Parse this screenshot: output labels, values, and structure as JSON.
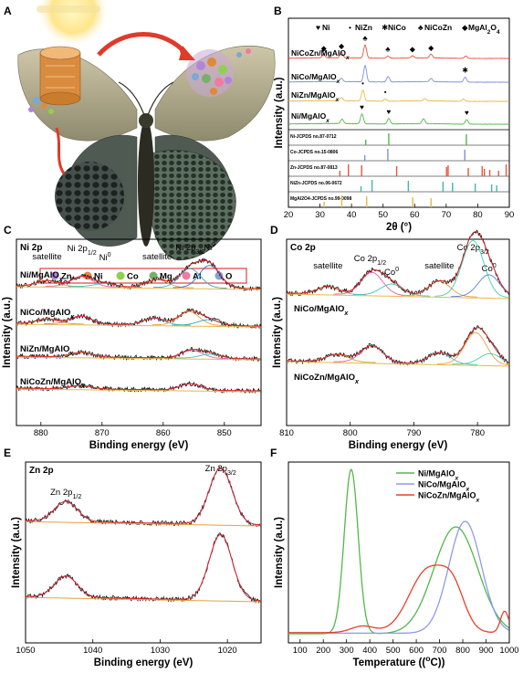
{
  "panels": {
    "A": "A",
    "B": "B",
    "C": "C",
    "D": "D",
    "E": "E",
    "F": "F"
  },
  "legend_A": {
    "items": [
      {
        "label": "Zn",
        "color": "#b184d8"
      },
      {
        "label": "Ni",
        "color": "#e08a3a"
      },
      {
        "label": "Co",
        "color": "#8fd14f"
      },
      {
        "label": "Mg",
        "color": "#76b06a"
      },
      {
        "label": "Al",
        "color": "#f07aa0"
      },
      {
        "label": "O",
        "color": "#7ea6d8"
      }
    ]
  },
  "chart_data": [
    {
      "panel": "B",
      "type": "line",
      "xlabel": "2θ (°)",
      "ylabel": "Intensity (a.u.)",
      "xlim": [
        20,
        90
      ],
      "xticks": [
        20,
        30,
        40,
        50,
        60,
        70,
        80,
        90
      ],
      "legend": [
        {
          "sym": "♥",
          "label": "Ni"
        },
        {
          "sym": "•",
          "label": "NiZn"
        },
        {
          "sym": "✱",
          "label": "NiCo"
        },
        {
          "sym": "♣",
          "label": "NiCoZn"
        },
        {
          "sym": "◆",
          "label": "MgAl2O4"
        }
      ],
      "series": [
        {
          "name": "NiCoZn/MgAlOx",
          "color": "#e8543a",
          "peaks": [
            [
              31.2,
              0.3
            ],
            [
              36.8,
              0.5
            ],
            [
              44.3,
              1.2
            ],
            [
              51.5,
              0.2
            ],
            [
              59.3,
              0.2
            ],
            [
              65.2,
              0.35
            ],
            [
              76.2,
              0.2
            ]
          ],
          "markers": [
            {
              "x": 31.2,
              "sym": "◆"
            },
            {
              "x": 36.8,
              "sym": "◆"
            },
            {
              "x": 44.3,
              "sym": "♣"
            },
            {
              "x": 51.5,
              "sym": "♣"
            },
            {
              "x": 59.3,
              "sym": "◆"
            },
            {
              "x": 65.2,
              "sym": "◆"
            }
          ]
        },
        {
          "name": "NiCo/MgAlOx",
          "color": "#7f8fe0",
          "peaks": [
            [
              36.8,
              0.3
            ],
            [
              44.3,
              1.5
            ],
            [
              51.6,
              0.5
            ],
            [
              65.2,
              0.3
            ],
            [
              76.0,
              0.45
            ]
          ],
          "markers": [
            {
              "x": 76.0,
              "sym": "✱"
            }
          ]
        },
        {
          "name": "NiZn/MgAlOx",
          "color": "#e8b84a",
          "peaks": [
            [
              36.8,
              0.3
            ],
            [
              43.6,
              1.0
            ],
            [
              50.7,
              0.2
            ],
            [
              63.2,
              0.2
            ],
            [
              75.5,
              0.2
            ]
          ],
          "markers": [
            {
              "x": 43.6,
              "sym": "•"
            },
            {
              "x": 50.7,
              "sym": "•"
            }
          ]
        },
        {
          "name": "Ni/MgAlOx",
          "color": "#52b848",
          "peaks": [
            [
              37.0,
              0.4
            ],
            [
              43.3,
              0.9
            ],
            [
              51.8,
              0.5
            ],
            [
              62.8,
              0.45
            ],
            [
              76.5,
              0.4
            ]
          ],
          "markers": [
            {
              "x": 43.3,
              "sym": "♥"
            },
            {
              "x": 51.8,
              "sym": "♥"
            },
            {
              "x": 76.5,
              "sym": "♥"
            }
          ]
        }
      ],
      "references": [
        {
          "label": "Ni-JCPDS no.87-0712",
          "color": "#52b848",
          "lines": [
            44.5,
            51.8,
            76.4
          ]
        },
        {
          "label": "Co-JCPDS no.15-0806",
          "color": "#7f8fe0",
          "lines": [
            44.2,
            51.5,
            75.9
          ]
        },
        {
          "label": "Zn-JCPDS no.87-0813",
          "color": "#e8543a",
          "lines": [
            36.3,
            39.0,
            43.2,
            54.3,
            70.1,
            77.0,
            82.1,
            83.8,
            86.6,
            89.0,
            70.6,
            81.4
          ]
        },
        {
          "label": "NiZn-JCPDS no.06-0672",
          "color": "#3cb8b0",
          "lines": [
            43.0,
            46.5,
            58.0,
            69.0,
            72.0,
            79.2,
            84.4,
            86.0
          ]
        },
        {
          "label": "MgAl2O4-JCPDS no.99-0098",
          "color": "#e8b84a",
          "lines": [
            31.3,
            36.9,
            44.8,
            59.4,
            65.2
          ]
        }
      ]
    },
    {
      "panel": "C",
      "type": "line",
      "title": "Ni 2p",
      "xlabel": "Binding energy (eV)",
      "ylabel": "Intensity (a.u.)",
      "xlim": [
        884,
        844
      ],
      "xticks": [
        880,
        870,
        860,
        850
      ],
      "annotations": [
        {
          "text": "satellite",
          "x": 879
        },
        {
          "text": "Ni 2p1/2",
          "x": 873.3
        },
        {
          "text": "Ni0",
          "x": 869.5
        },
        {
          "text": "satellite",
          "x": 861
        },
        {
          "text": "Ni 2p3/2",
          "x": 855.6
        },
        {
          "text": "Ni0",
          "x": 852.4
        }
      ],
      "series": [
        {
          "name": "Ni/MgAlOx",
          "peaks": [
            [
              879,
              0.25
            ],
            [
              873.3,
              0.45
            ],
            [
              869.5,
              0.15
            ],
            [
              861,
              0.35
            ],
            [
              855.6,
              0.85
            ],
            [
              852.4,
              1.0
            ]
          ]
        },
        {
          "name": "NiCo/MgAlOx",
          "peaks": [
            [
              879,
              0.2
            ],
            [
              873.5,
              0.35
            ],
            [
              861.5,
              0.3
            ],
            [
              855.8,
              0.6
            ],
            [
              852.6,
              0.25
            ]
          ]
        },
        {
          "name": "NiZn/MgAlOx",
          "peaks": [
            [
              873.5,
              0.2
            ],
            [
              855.3,
              0.35
            ],
            [
              852.3,
              0.18
            ]
          ]
        },
        {
          "name": "NiCoZn/MgAlOx",
          "peaks": [
            [
              873.5,
              0.15
            ],
            [
              855.5,
              0.28
            ]
          ]
        }
      ]
    },
    {
      "panel": "D",
      "type": "line",
      "title": "Co 2p",
      "xlabel": "Binding energy (eV)",
      "ylabel": "Intensity (a.u.)",
      "xlim": [
        810,
        775
      ],
      "xticks": [
        810,
        800,
        790,
        780
      ],
      "annotations": [
        {
          "text": "satellite",
          "x": 803.5
        },
        {
          "text": "Co 2p1/2",
          "x": 796.6
        },
        {
          "text": "Co0",
          "x": 793.5
        },
        {
          "text": "satellite",
          "x": 786
        },
        {
          "text": "Co 2p3/2",
          "x": 780.7
        },
        {
          "text": "Co0",
          "x": 778.2
        }
      ],
      "series": [
        {
          "name": "NiCo/MgAlOx",
          "peaks": [
            [
              803.5,
              0.2
            ],
            [
              796.6,
              0.6
            ],
            [
              793.5,
              0.3
            ],
            [
              786,
              0.4
            ],
            [
              780.7,
              1.5
            ],
            [
              778.2,
              0.6
            ]
          ]
        },
        {
          "name": "NiCoZn/MgAlOx",
          "peaks": [
            [
              802,
              0.2
            ],
            [
              796.6,
              0.45
            ],
            [
              786,
              0.3
            ],
            [
              780.3,
              0.85
            ],
            [
              778,
              0.3
            ]
          ]
        }
      ]
    },
    {
      "panel": "E",
      "type": "line",
      "title": "Zn 2p",
      "xlabel": "Binding energy (eV)",
      "ylabel": "Intensity (a.u.)",
      "xlim": [
        1050,
        1015
      ],
      "xticks": [
        1050,
        1040,
        1030,
        1020
      ],
      "annotations": [
        {
          "text": "Zn 2p1/2",
          "x": 1044
        },
        {
          "text": "Zn 2p3/2",
          "x": 1021
        }
      ],
      "series": [
        {
          "name": "upper",
          "peaks": [
            [
              1044,
              0.55
            ],
            [
              1021,
              1.55
            ]
          ]
        },
        {
          "name": "lower",
          "peaks": [
            [
              1044,
              0.58
            ],
            [
              1021,
              1.8
            ]
          ]
        }
      ]
    },
    {
      "panel": "F",
      "type": "line",
      "xlabel": "Temperature (°C)",
      "ylabel": "Intensity (a.u.)",
      "xlim": [
        50,
        1000
      ],
      "xticks": [
        100,
        200,
        300,
        400,
        500,
        600,
        700,
        800,
        900,
        1000
      ],
      "legend_position": "top-right",
      "series": [
        {
          "name": "Ni/MgAlOx",
          "color": "#52b848",
          "peaks": [
            [
              320,
              1.0,
              30
            ],
            [
              770,
              0.65,
              95
            ]
          ]
        },
        {
          "name": "NiCo/MgAlOx",
          "color": "#8f9ae8",
          "peaks": [
            [
              810,
              0.68,
              70
            ]
          ]
        },
        {
          "name": "NiCoZn/MgAlOx",
          "color": "#e8402a",
          "peaks": [
            [
              370,
              0.04,
              50
            ],
            [
              650,
              0.38,
              80
            ],
            [
              760,
              0.2,
              50
            ],
            [
              980,
              0.13,
              18
            ]
          ]
        }
      ]
    }
  ]
}
